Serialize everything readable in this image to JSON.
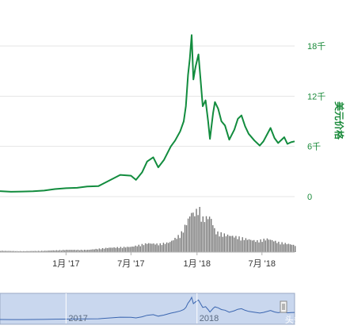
{
  "chart_data": {
    "type": "line",
    "ylabel": "美元价格",
    "y_ticks": [
      {
        "value": 0,
        "label": "0"
      },
      {
        "value": 6000,
        "label": "6千"
      },
      {
        "value": 12000,
        "label": "12千"
      },
      {
        "value": 18000,
        "label": "18千"
      }
    ],
    "ylim": [
      0,
      20000
    ],
    "x_ticks": [
      {
        "date": "2017-01-01",
        "label": "1月 '17"
      },
      {
        "date": "2017-07-01",
        "label": "7月 '17"
      },
      {
        "date": "2018-01-01",
        "label": "1月 '18"
      },
      {
        "date": "2018-07-01",
        "label": "7月 '18"
      }
    ],
    "xlim": [
      "2016-07-01",
      "2018-09-30"
    ],
    "grid": true,
    "colors": {
      "price": "#128c3e",
      "volume": "#777777",
      "navigator_fill": "#c9d7ee",
      "navigator_line": "#3b66b0"
    },
    "price_series": {
      "name": "美元价格",
      "points": [
        [
          "2016-07-01",
          650
        ],
        [
          "2016-08-01",
          580
        ],
        [
          "2016-09-01",
          610
        ],
        [
          "2016-10-01",
          640
        ],
        [
          "2016-11-01",
          720
        ],
        [
          "2016-12-01",
          900
        ],
        [
          "2017-01-01",
          1000
        ],
        [
          "2017-02-01",
          1050
        ],
        [
          "2017-03-01",
          1200
        ],
        [
          "2017-04-01",
          1250
        ],
        [
          "2017-05-01",
          1900
        ],
        [
          "2017-06-01",
          2600
        ],
        [
          "2017-07-01",
          2500
        ],
        [
          "2017-07-15",
          2000
        ],
        [
          "2017-08-01",
          2900
        ],
        [
          "2017-08-15",
          4200
        ],
        [
          "2017-09-01",
          4700
        ],
        [
          "2017-09-15",
          3500
        ],
        [
          "2017-10-01",
          4400
        ],
        [
          "2017-10-20",
          6000
        ],
        [
          "2017-11-01",
          6700
        ],
        [
          "2017-11-15",
          7800
        ],
        [
          "2017-11-25",
          9000
        ],
        [
          "2017-12-01",
          10800
        ],
        [
          "2017-12-07",
          14500
        ],
        [
          "2017-12-12",
          16500
        ],
        [
          "2017-12-17",
          19300
        ],
        [
          "2017-12-22",
          14000
        ],
        [
          "2017-12-28",
          15500
        ],
        [
          "2018-01-05",
          17000
        ],
        [
          "2018-01-10",
          14500
        ],
        [
          "2018-01-17",
          10800
        ],
        [
          "2018-01-25",
          11500
        ],
        [
          "2018-02-01",
          9000
        ],
        [
          "2018-02-06",
          6900
        ],
        [
          "2018-02-15",
          10000
        ],
        [
          "2018-02-20",
          11300
        ],
        [
          "2018-03-01",
          10500
        ],
        [
          "2018-03-10",
          9000
        ],
        [
          "2018-03-20",
          8500
        ],
        [
          "2018-04-01",
          6800
        ],
        [
          "2018-04-15",
          8000
        ],
        [
          "2018-04-25",
          9300
        ],
        [
          "2018-05-05",
          9700
        ],
        [
          "2018-05-15",
          8400
        ],
        [
          "2018-05-25",
          7500
        ],
        [
          "2018-06-10",
          6700
        ],
        [
          "2018-06-25",
          6100
        ],
        [
          "2018-07-05",
          6600
        ],
        [
          "2018-07-25",
          8200
        ],
        [
          "2018-08-05",
          7000
        ],
        [
          "2018-08-15",
          6400
        ],
        [
          "2018-09-01",
          7100
        ],
        [
          "2018-09-10",
          6300
        ],
        [
          "2018-09-20",
          6500
        ],
        [
          "2018-09-30",
          6600
        ]
      ]
    },
    "volume_series": {
      "points": [
        [
          "2016-07-01",
          0.03
        ],
        [
          "2016-09-01",
          0.02
        ],
        [
          "2016-11-01",
          0.03
        ],
        [
          "2017-01-01",
          0.05
        ],
        [
          "2017-03-01",
          0.05
        ],
        [
          "2017-05-01",
          0.1
        ],
        [
          "2017-07-01",
          0.12
        ],
        [
          "2017-08-15",
          0.2
        ],
        [
          "2017-09-15",
          0.18
        ],
        [
          "2017-10-15",
          0.22
        ],
        [
          "2017-11-15",
          0.4
        ],
        [
          "2017-12-01",
          0.65
        ],
        [
          "2017-12-15",
          0.9
        ],
        [
          "2017-12-22",
          0.85
        ],
        [
          "2018-01-05",
          1.0
        ],
        [
          "2018-01-15",
          0.75
        ],
        [
          "2018-02-06",
          0.8
        ],
        [
          "2018-02-20",
          0.45
        ],
        [
          "2018-03-15",
          0.4
        ],
        [
          "2018-04-15",
          0.35
        ],
        [
          "2018-05-15",
          0.3
        ],
        [
          "2018-06-15",
          0.25
        ],
        [
          "2018-07-15",
          0.3
        ],
        [
          "2018-08-15",
          0.22
        ],
        [
          "2018-09-15",
          0.18
        ],
        [
          "2018-09-30",
          0.15
        ]
      ]
    },
    "navigator": {
      "labels": [
        {
          "date": "2017-01-01",
          "label": "2017"
        },
        {
          "date": "2018-01-01",
          "label": "2018"
        }
      ],
      "watermark": "头条 @文白学堂"
    }
  }
}
